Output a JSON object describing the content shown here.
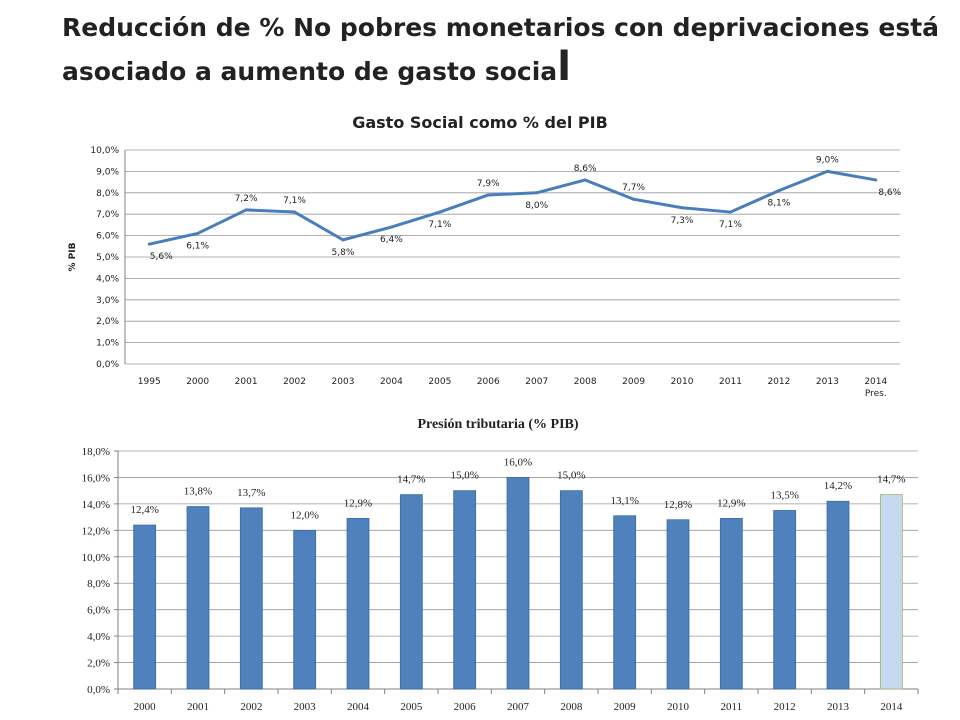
{
  "slide": {
    "title_main": "Reducción de % No pobres monetarios con deprivaciones está asociado a aumento de gasto socia",
    "title_last_char": "l"
  },
  "chart_data": [
    {
      "type": "line",
      "title": "Gasto Social como % del PIB",
      "xlabel": "",
      "ylabel": "% PIB",
      "categories": [
        "1995",
        "2000",
        "2001",
        "2002",
        "2003",
        "2004",
        "2005",
        "2006",
        "2007",
        "2008",
        "2009",
        "2010",
        "2011",
        "2012",
        "2013",
        "2014"
      ],
      "category_sublabels": [
        "",
        "",
        "",
        "",
        "",
        "",
        "",
        "",
        "",
        "",
        "",
        "",
        "",
        "",
        "",
        "Pres."
      ],
      "values": [
        5.6,
        6.1,
        7.2,
        7.1,
        5.8,
        6.4,
        7.1,
        7.9,
        8.0,
        8.6,
        7.7,
        7.3,
        7.1,
        8.1,
        9.0,
        8.6
      ],
      "data_labels": [
        "5,6%",
        "6,1%",
        "7,2%",
        "7,1%",
        "5,8%",
        "6,4%",
        "7,1%",
        "7,9%",
        "8,0%",
        "8,6%",
        "7,7%",
        "7,3%",
        "7,1%",
        "8,1%",
        "9,0%",
        "8,6%"
      ],
      "data_label_positions": [
        "below",
        "below",
        "above",
        "above",
        "below",
        "below",
        "below",
        "above",
        "below",
        "above",
        "above",
        "below",
        "below",
        "below",
        "above",
        "below"
      ],
      "yticks": [
        "0,0%",
        "1,0%",
        "2,0%",
        "3,0%",
        "4,0%",
        "5,0%",
        "6,0%",
        "7,0%",
        "8,0%",
        "9,0%",
        "10,0%"
      ],
      "ylim": [
        0,
        10
      ],
      "grid": true,
      "legend": "none",
      "color": "#4a7ebb"
    },
    {
      "type": "bar",
      "title": "Presión tributaria (% PIB)",
      "xlabel": "",
      "ylabel": "",
      "categories": [
        "2000",
        "2001",
        "2002",
        "2003",
        "2004",
        "2005",
        "2006",
        "2007",
        "2008",
        "2009",
        "2010",
        "2011",
        "2012",
        "2013",
        "2014"
      ],
      "values": [
        12.4,
        13.8,
        13.7,
        12.0,
        12.9,
        14.7,
        15.0,
        16.0,
        15.0,
        13.1,
        12.8,
        12.9,
        13.5,
        14.2,
        14.7
      ],
      "data_labels": [
        "12,4%",
        "13,8%",
        "13,7%",
        "12,0%",
        "12,9%",
        "14,7%",
        "15,0%",
        "16,0%",
        "15,0%",
        "13,1%",
        "12,8%",
        "12,9%",
        "13,5%",
        "14,2%",
        "14,7%"
      ],
      "yticks": [
        "0,0%",
        "2,0%",
        "4,0%",
        "6,0%",
        "8,0%",
        "10,0%",
        "12,0%",
        "14,0%",
        "16,0%",
        "18,0%"
      ],
      "ylim": [
        0,
        18
      ],
      "grid": true,
      "legend": "none",
      "bar_color": "#4f81bd",
      "highlight_color": "#c6d9f1",
      "highlight_index": 14
    }
  ]
}
